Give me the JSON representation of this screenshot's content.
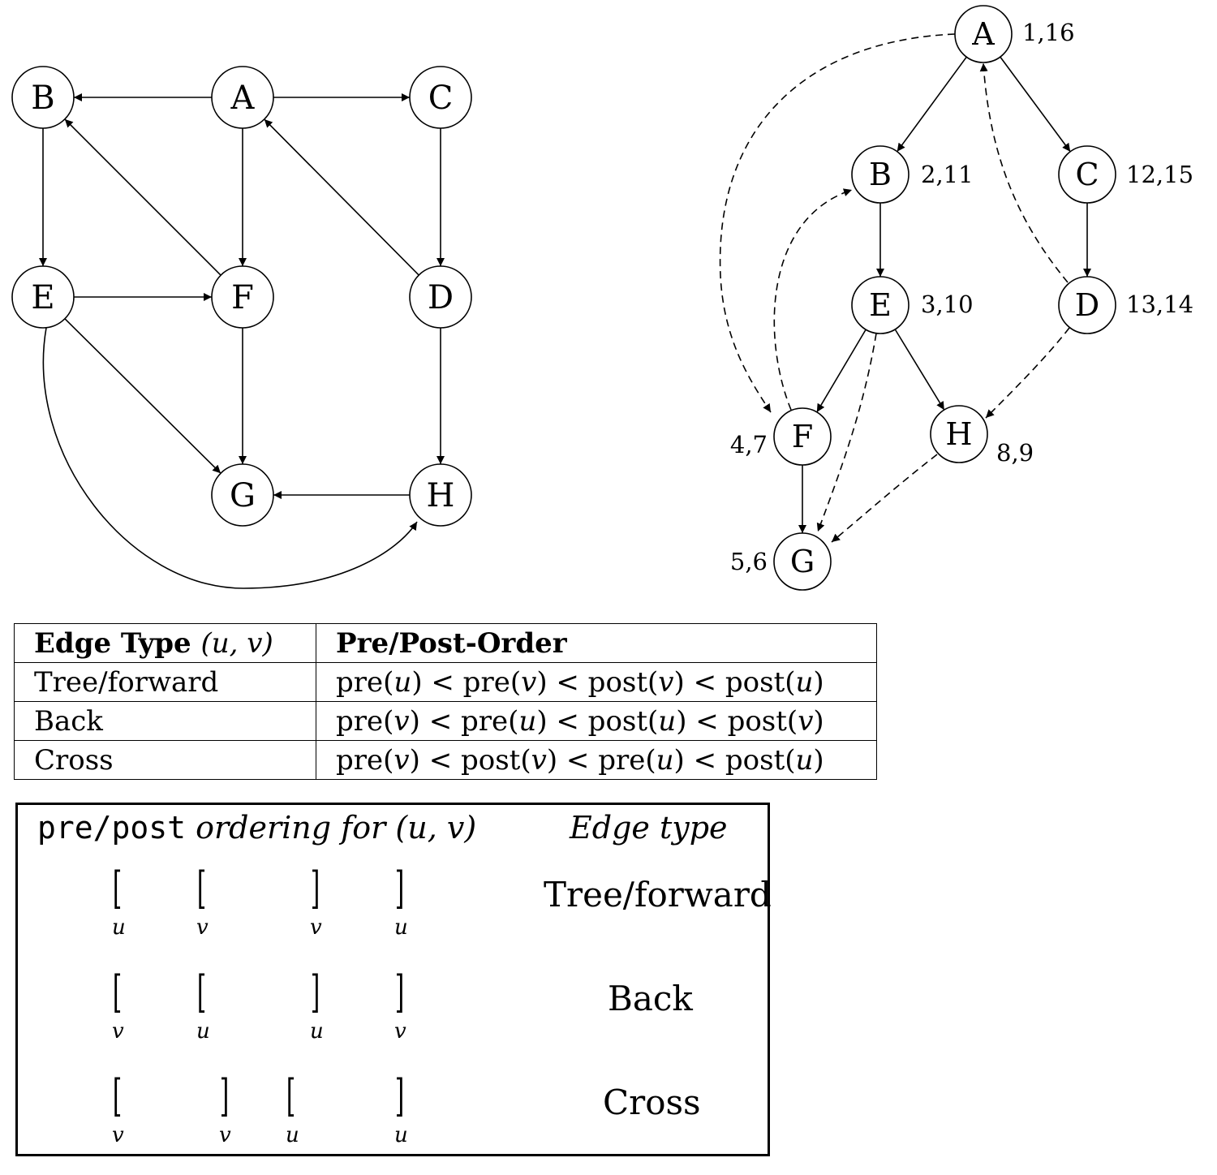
{
  "graph_left": {
    "nodes": [
      "A",
      "B",
      "C",
      "D",
      "E",
      "F",
      "G",
      "H"
    ],
    "edges": [
      [
        "A",
        "B"
      ],
      [
        "A",
        "C"
      ],
      [
        "A",
        "F"
      ],
      [
        "B",
        "E"
      ],
      [
        "C",
        "D"
      ],
      [
        "D",
        "A"
      ],
      [
        "D",
        "H"
      ],
      [
        "E",
        "F"
      ],
      [
        "E",
        "G"
      ],
      [
        "E",
        "H"
      ],
      [
        "F",
        "B"
      ],
      [
        "F",
        "G"
      ],
      [
        "H",
        "G"
      ]
    ]
  },
  "graph_right": {
    "nodes": [
      {
        "id": "A",
        "times": "1,16"
      },
      {
        "id": "B",
        "times": "2,11"
      },
      {
        "id": "C",
        "times": "12,15"
      },
      {
        "id": "E",
        "times": "3,10"
      },
      {
        "id": "D",
        "times": "13,14"
      },
      {
        "id": "F",
        "times": "4,7"
      },
      {
        "id": "H",
        "times": "8,9"
      },
      {
        "id": "G",
        "times": "5,6"
      }
    ],
    "tree_edges": [
      [
        "A",
        "B"
      ],
      [
        "A",
        "C"
      ],
      [
        "B",
        "E"
      ],
      [
        "C",
        "D"
      ],
      [
        "E",
        "F"
      ],
      [
        "E",
        "H"
      ],
      [
        "F",
        "G"
      ]
    ],
    "dashed_edges": [
      [
        "A",
        "F"
      ],
      [
        "F",
        "B"
      ],
      [
        "D",
        "A"
      ],
      [
        "E",
        "G"
      ],
      [
        "D",
        "H"
      ],
      [
        "H",
        "G"
      ]
    ]
  },
  "table": {
    "header_col1_bold": "Edge Type",
    "header_col1_math": "(u, v)",
    "header_col2": "Pre/Post-Order",
    "rows": [
      {
        "type": "Tree/forward",
        "order": [
          "pre(",
          "u",
          ") < pre(",
          "v",
          ") < post(",
          "v",
          ") < post(",
          "u",
          ")"
        ]
      },
      {
        "type": "Back",
        "order": [
          "pre(",
          "v",
          ") < pre(",
          "u",
          ") < post(",
          "u",
          ") < post(",
          "v",
          ")"
        ]
      },
      {
        "type": "Cross",
        "order": [
          "pre(",
          "v",
          ") < post(",
          "v",
          ") < pre(",
          "u",
          ") < post(",
          "u",
          ")"
        ]
      }
    ]
  },
  "box": {
    "title_mono": "pre/post",
    "title_italic": "ordering for",
    "title_math": "(u, v)",
    "col_header": "Edge type",
    "rows": [
      {
        "name": "Tree/forward",
        "labels": [
          "u",
          "v",
          "v",
          "u"
        ]
      },
      {
        "name": "Back",
        "labels": [
          "v",
          "u",
          "u",
          "v"
        ]
      },
      {
        "name": "Cross",
        "labels": [
          "v",
          "v",
          "u",
          "u"
        ]
      }
    ]
  }
}
